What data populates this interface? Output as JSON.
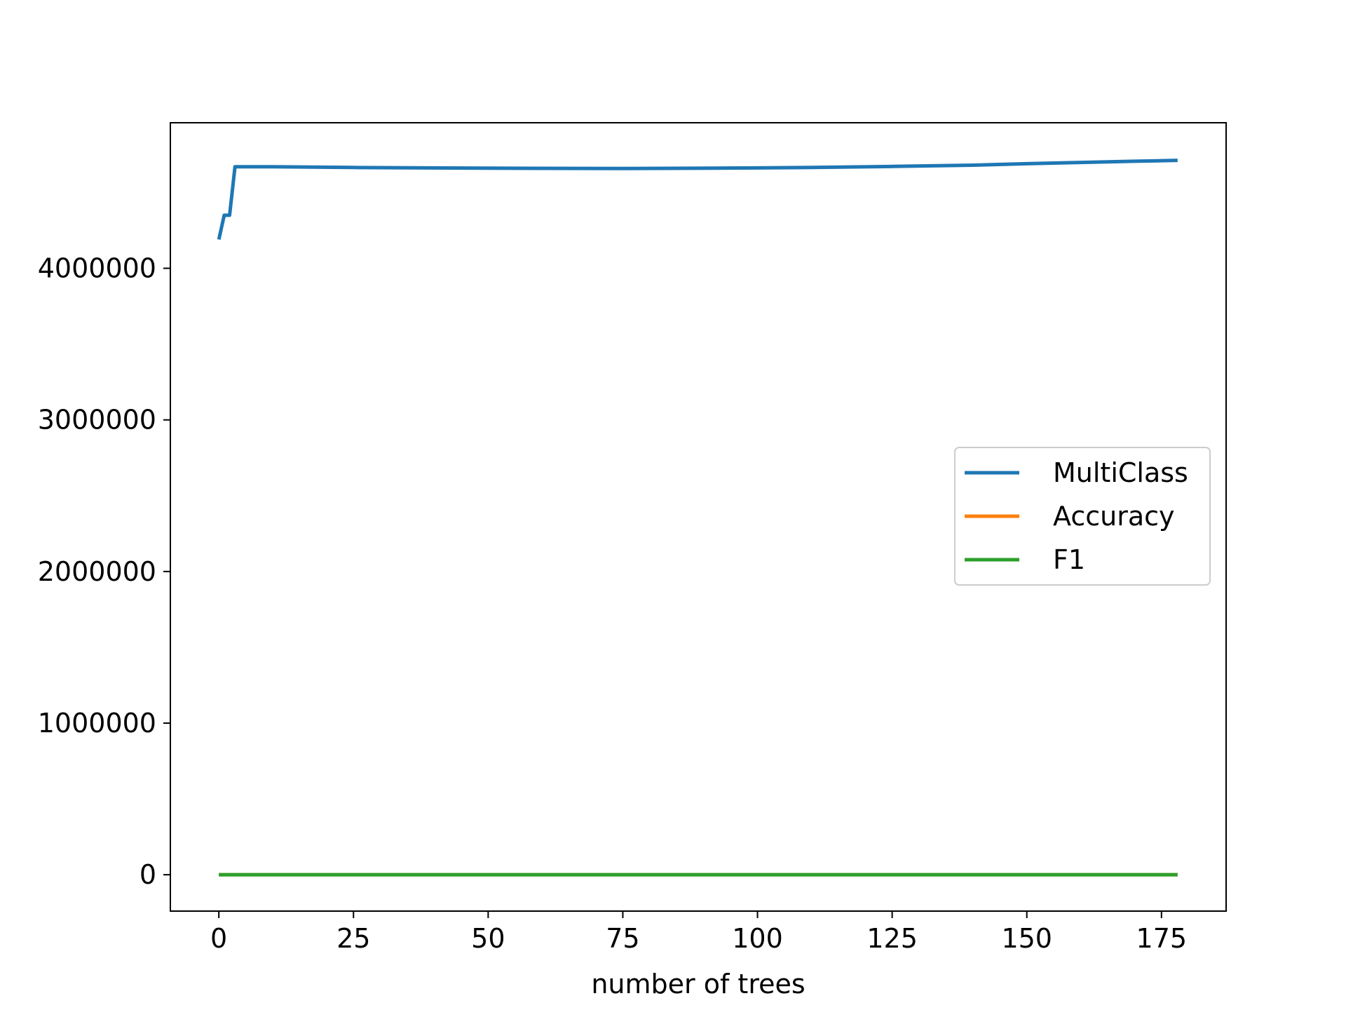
{
  "chart_data": {
    "type": "line",
    "title": "",
    "xlabel": "number of trees",
    "ylabel": "",
    "xlim": [
      -9,
      187
    ],
    "ylim": [
      -240000,
      4960000
    ],
    "xticks": [
      0,
      25,
      50,
      75,
      100,
      125,
      150,
      175
    ],
    "xtick_labels": [
      "0",
      "25",
      "50",
      "75",
      "100",
      "125",
      "150",
      "175"
    ],
    "yticks": [
      0,
      1000000,
      2000000,
      3000000,
      4000000
    ],
    "ytick_labels": [
      "0",
      "1000000",
      "2000000",
      "3000000",
      "4000000"
    ],
    "grid": false,
    "legend_position": "center-right",
    "series": [
      {
        "name": "MultiClass",
        "color": "#1f77b4",
        "x": [
          0,
          1,
          2,
          3,
          10,
          25,
          50,
          75,
          100,
          110,
          125,
          140,
          150,
          160,
          170,
          178
        ],
        "y": [
          4190000,
          4350000,
          4350000,
          4670000,
          4670000,
          4665000,
          4660000,
          4658000,
          4662000,
          4665000,
          4672000,
          4680000,
          4690000,
          4698000,
          4706000,
          4712000
        ]
      },
      {
        "name": "Accuracy",
        "color": "#ff7f0e",
        "x": [
          0,
          178
        ],
        "y": [
          0.5,
          0.5
        ]
      },
      {
        "name": "F1",
        "color": "#2ca02c",
        "x": [
          0,
          178
        ],
        "y": [
          0.5,
          0.5
        ]
      }
    ]
  }
}
